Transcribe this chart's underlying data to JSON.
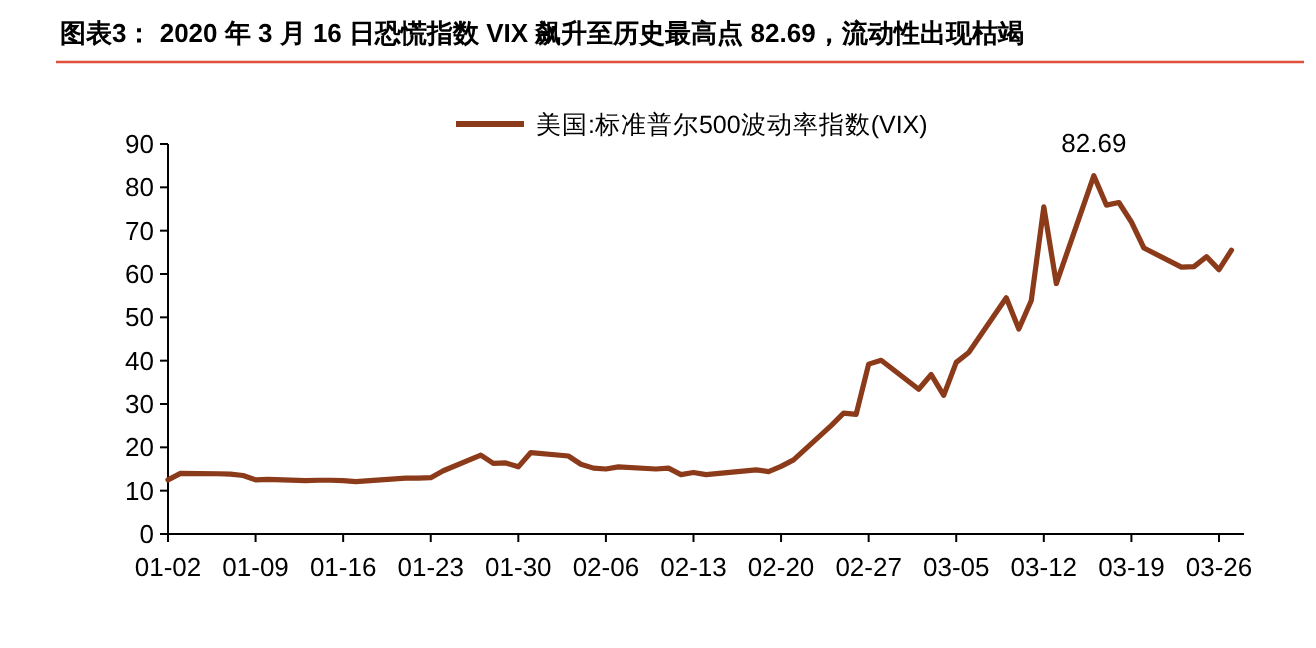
{
  "chart_data": {
    "type": "line",
    "title": "图表3：  2020 年 3 月 16 日恐慌指数 VIX 飙升至历史最高点 82.69，流动性出现枯竭",
    "x": [
      "2020-01-02",
      "2020-01-03",
      "2020-01-06",
      "2020-01-07",
      "2020-01-08",
      "2020-01-09",
      "2020-01-10",
      "2020-01-13",
      "2020-01-14",
      "2020-01-15",
      "2020-01-16",
      "2020-01-17",
      "2020-01-21",
      "2020-01-22",
      "2020-01-23",
      "2020-01-24",
      "2020-01-27",
      "2020-01-28",
      "2020-01-29",
      "2020-01-30",
      "2020-01-31",
      "2020-02-03",
      "2020-02-04",
      "2020-02-05",
      "2020-02-06",
      "2020-02-07",
      "2020-02-10",
      "2020-02-11",
      "2020-02-12",
      "2020-02-13",
      "2020-02-14",
      "2020-02-18",
      "2020-02-19",
      "2020-02-20",
      "2020-02-21",
      "2020-02-24",
      "2020-02-25",
      "2020-02-26",
      "2020-02-27",
      "2020-02-28",
      "2020-03-02",
      "2020-03-03",
      "2020-03-04",
      "2020-03-05",
      "2020-03-06",
      "2020-03-09",
      "2020-03-10",
      "2020-03-11",
      "2020-03-12",
      "2020-03-13",
      "2020-03-16",
      "2020-03-17",
      "2020-03-18",
      "2020-03-19",
      "2020-03-20",
      "2020-03-23",
      "2020-03-24",
      "2020-03-25",
      "2020-03-26",
      "2020-03-27"
    ],
    "series": [
      {
        "name": "美国:标准普尔500波动率指数(VIX)",
        "color": "#8b3a1a",
        "values": [
          12.5,
          14.0,
          13.9,
          13.8,
          13.5,
          12.5,
          12.6,
          12.3,
          12.4,
          12.4,
          12.3,
          12.1,
          12.9,
          12.9,
          13.0,
          14.6,
          18.2,
          16.3,
          16.4,
          15.5,
          18.8,
          18.0,
          16.1,
          15.2,
          15.0,
          15.5,
          15.0,
          15.2,
          13.7,
          14.2,
          13.7,
          14.8,
          14.4,
          15.6,
          17.1,
          25.0,
          27.9,
          27.6,
          39.2,
          40.1,
          33.4,
          36.8,
          32.0,
          39.6,
          41.9,
          54.5,
          47.3,
          53.9,
          75.5,
          57.8,
          82.69,
          75.9,
          76.5,
          72.0,
          66.0,
          61.6,
          61.7,
          64.0,
          61.0,
          65.5
        ]
      }
    ],
    "xlim": [
      "2020-01-02",
      "2020-03-28"
    ],
    "xticks": [
      {
        "value": "2020-01-02",
        "label": "01-02"
      },
      {
        "value": "2020-01-09",
        "label": "01-09"
      },
      {
        "value": "2020-01-16",
        "label": "01-16"
      },
      {
        "value": "2020-01-23",
        "label": "01-23"
      },
      {
        "value": "2020-01-30",
        "label": "01-30"
      },
      {
        "value": "2020-02-06",
        "label": "02-06"
      },
      {
        "value": "2020-02-13",
        "label": "02-13"
      },
      {
        "value": "2020-02-20",
        "label": "02-20"
      },
      {
        "value": "2020-02-27",
        "label": "02-27"
      },
      {
        "value": "2020-03-05",
        "label": "03-05"
      },
      {
        "value": "2020-03-12",
        "label": "03-12"
      },
      {
        "value": "2020-03-19",
        "label": "03-19"
      },
      {
        "value": "2020-03-26",
        "label": "03-26"
      }
    ],
    "ylim": [
      0,
      90
    ],
    "yticks": [
      0,
      10,
      20,
      30,
      40,
      50,
      60,
      70,
      80,
      90
    ],
    "legend": "top",
    "annotations": [
      {
        "text": "82.69",
        "x": "2020-03-16",
        "y": 82.69
      }
    ]
  }
}
